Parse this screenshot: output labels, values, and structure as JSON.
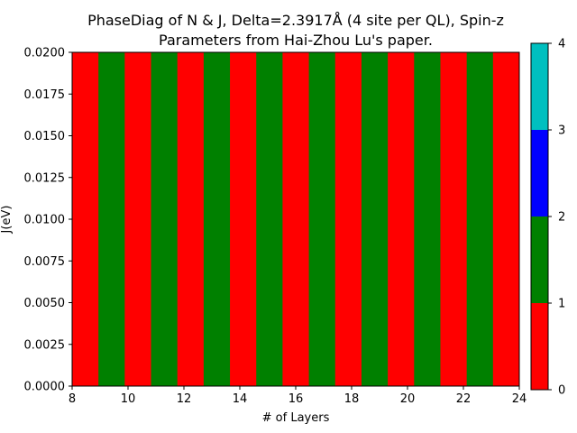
{
  "chart_data": {
    "type": "heatmap",
    "title_line1": "PhaseDiag of N & J, Delta=2.3917Å (4 site per QL), Spin-z",
    "title_line2": "Parameters from Hai-Zhou Lu's paper.",
    "xlabel": "# of Layers",
    "ylabel": "J(eV)",
    "xlim": [
      8,
      24
    ],
    "ylim": [
      0.0,
      0.02
    ],
    "x_ticks": [
      "8",
      "10",
      "12",
      "14",
      "16",
      "18",
      "20",
      "22",
      "24"
    ],
    "x_tick_values": [
      8,
      10,
      12,
      14,
      16,
      18,
      20,
      22,
      24
    ],
    "y_ticks": [
      "0.0000",
      "0.0025",
      "0.0050",
      "0.0075",
      "0.0100",
      "0.0125",
      "0.0150",
      "0.0175",
      "0.0200"
    ],
    "y_tick_values": [
      0,
      0.0025,
      0.005,
      0.0075,
      0.01,
      0.0125,
      0.015,
      0.0175,
      0.02
    ],
    "grid": false,
    "columns": 17,
    "phase_values": [
      0,
      1,
      0,
      1,
      0,
      1,
      0,
      1,
      0,
      1,
      0,
      1,
      0,
      1,
      0,
      1,
      0
    ],
    "colorbar": {
      "ticks": [
        "0",
        "1",
        "2",
        "3",
        "4"
      ],
      "tick_values": [
        0,
        1,
        2,
        3,
        4
      ],
      "levels": [
        {
          "from": 0,
          "to": 1,
          "color": "#ff0000"
        },
        {
          "from": 1,
          "to": 2,
          "color": "#008000"
        },
        {
          "from": 2,
          "to": 3,
          "color": "#0000ff"
        },
        {
          "from": 3,
          "to": 4,
          "color": "#00bfbf"
        }
      ]
    }
  }
}
